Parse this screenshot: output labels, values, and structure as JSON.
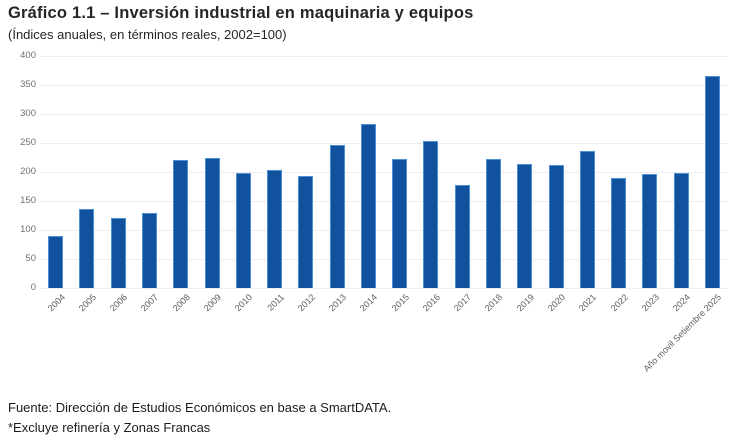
{
  "header": {
    "title": "Gráfico 1.1 – Inversión industrial en maquinaria y equipos",
    "subtitle": "(Índices anuales, en términos reales, 2002=100)"
  },
  "chart_data": {
    "type": "bar",
    "title": "Gráfico 1.1 – Inversión industrial en maquinaria y equipos",
    "subtitle": "(Índices anuales, en términos reales, 2002=100)",
    "categories": [
      "2004",
      "2005",
      "2006",
      "2007",
      "2008",
      "2009",
      "2010",
      "2011",
      "2012",
      "2013",
      "2014",
      "2015",
      "2016",
      "2017",
      "2018",
      "2019",
      "2020",
      "2021",
      "2022",
      "2023",
      "2024",
      "Año movil Setiembre 2025"
    ],
    "values": [
      90,
      137,
      121,
      130,
      220,
      224,
      198,
      204,
      193,
      247,
      283,
      222,
      253,
      178,
      222,
      214,
      212,
      237,
      190,
      197,
      199,
      366
    ],
    "ylim": [
      0,
      400
    ],
    "yticks": [
      0,
      50,
      100,
      150,
      200,
      250,
      300,
      350,
      400
    ],
    "grid": true,
    "legend": "none",
    "bar_color": "#11529E",
    "bar_border_color": "#4D8FD6",
    "gridline_color": "#ededed",
    "tick_label_color": "#6e6e6e"
  },
  "footer": {
    "source": "Fuente: Dirección de Estudios Económicos en base a SmartDATA.",
    "note": "*Excluye refinería y Zonas Francas"
  }
}
